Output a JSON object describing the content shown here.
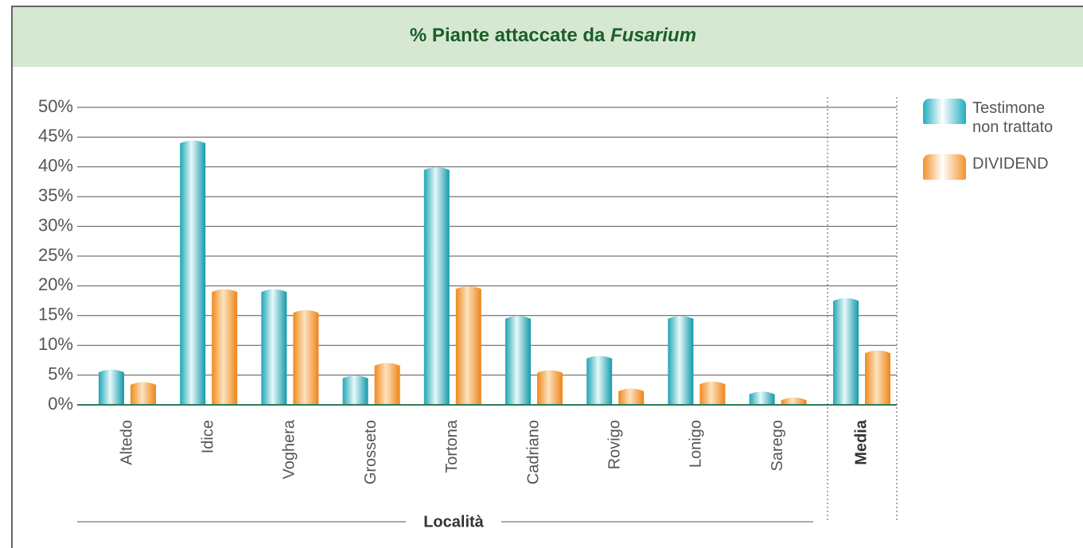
{
  "chart_data": {
    "type": "bar",
    "title": {
      "text": "% Piante attaccate da",
      "italic": "Fusarium"
    },
    "x_label": "Località",
    "categories": [
      "Altedo",
      "Idice",
      "Voghera",
      "Grosseto",
      "Tortona",
      "Cadriano",
      "Rovigo",
      "Lonigo",
      "Sarego",
      "Media"
    ],
    "series": [
      {
        "name": "Testimone non trattato",
        "color": "#22aebf",
        "values": [
          6,
          44.5,
          19.5,
          5,
          40,
          15,
          8.3,
          15,
          2.3,
          18
        ]
      },
      {
        "name": "DIVIDEND",
        "color": "#f3922a",
        "values": [
          3.9,
          19.5,
          16,
          7.1,
          20,
          5.9,
          2.8,
          4,
          1.3,
          9.2
        ]
      }
    ],
    "ylim": [
      0,
      50
    ],
    "yticks": [
      {
        "value": 0,
        "label": "0%"
      },
      {
        "value": 5,
        "label": "5%"
      },
      {
        "value": 10,
        "label": "10%"
      },
      {
        "value": 15,
        "label": "15%"
      },
      {
        "value": 20,
        "label": "20%"
      },
      {
        "value": 25,
        "label": "25%"
      },
      {
        "value": 30,
        "label": "30%"
      },
      {
        "value": 35,
        "label": "35%"
      },
      {
        "value": 40,
        "label": "40%"
      },
      {
        "value": 45,
        "label": "45%"
      },
      {
        "value": 50,
        "label": "50%"
      }
    ],
    "grid": true,
    "legend": "right"
  }
}
